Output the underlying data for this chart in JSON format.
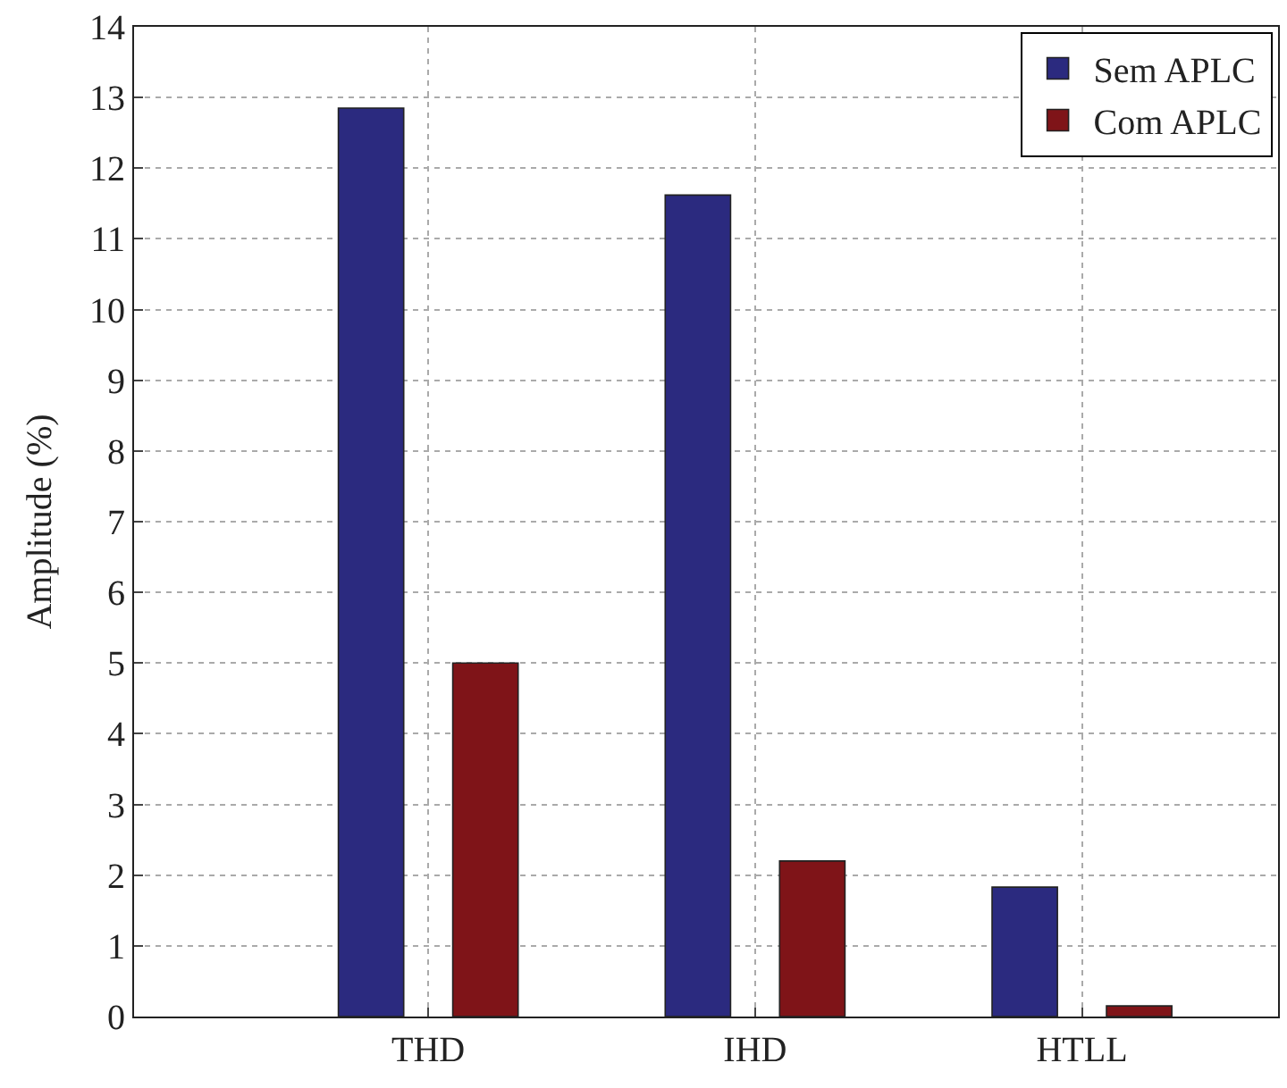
{
  "chart_data": {
    "type": "bar",
    "ylabel": "Amplitude (%)",
    "categories": [
      "THD",
      "IHD",
      "HTLL"
    ],
    "series": [
      {
        "name": "Sem APLC",
        "color": "#2b2a7f",
        "values": [
          12.85,
          11.62,
          1.83
        ]
      },
      {
        "name": "Com APLC",
        "color": "#7f1418",
        "values": [
          5.0,
          2.2,
          0.15
        ]
      }
    ],
    "ylim": [
      0,
      14
    ],
    "yticks": [
      0,
      1,
      2,
      3,
      4,
      5,
      6,
      7,
      8,
      9,
      10,
      11,
      12,
      13,
      14
    ],
    "grid": true,
    "legend": "top right"
  }
}
